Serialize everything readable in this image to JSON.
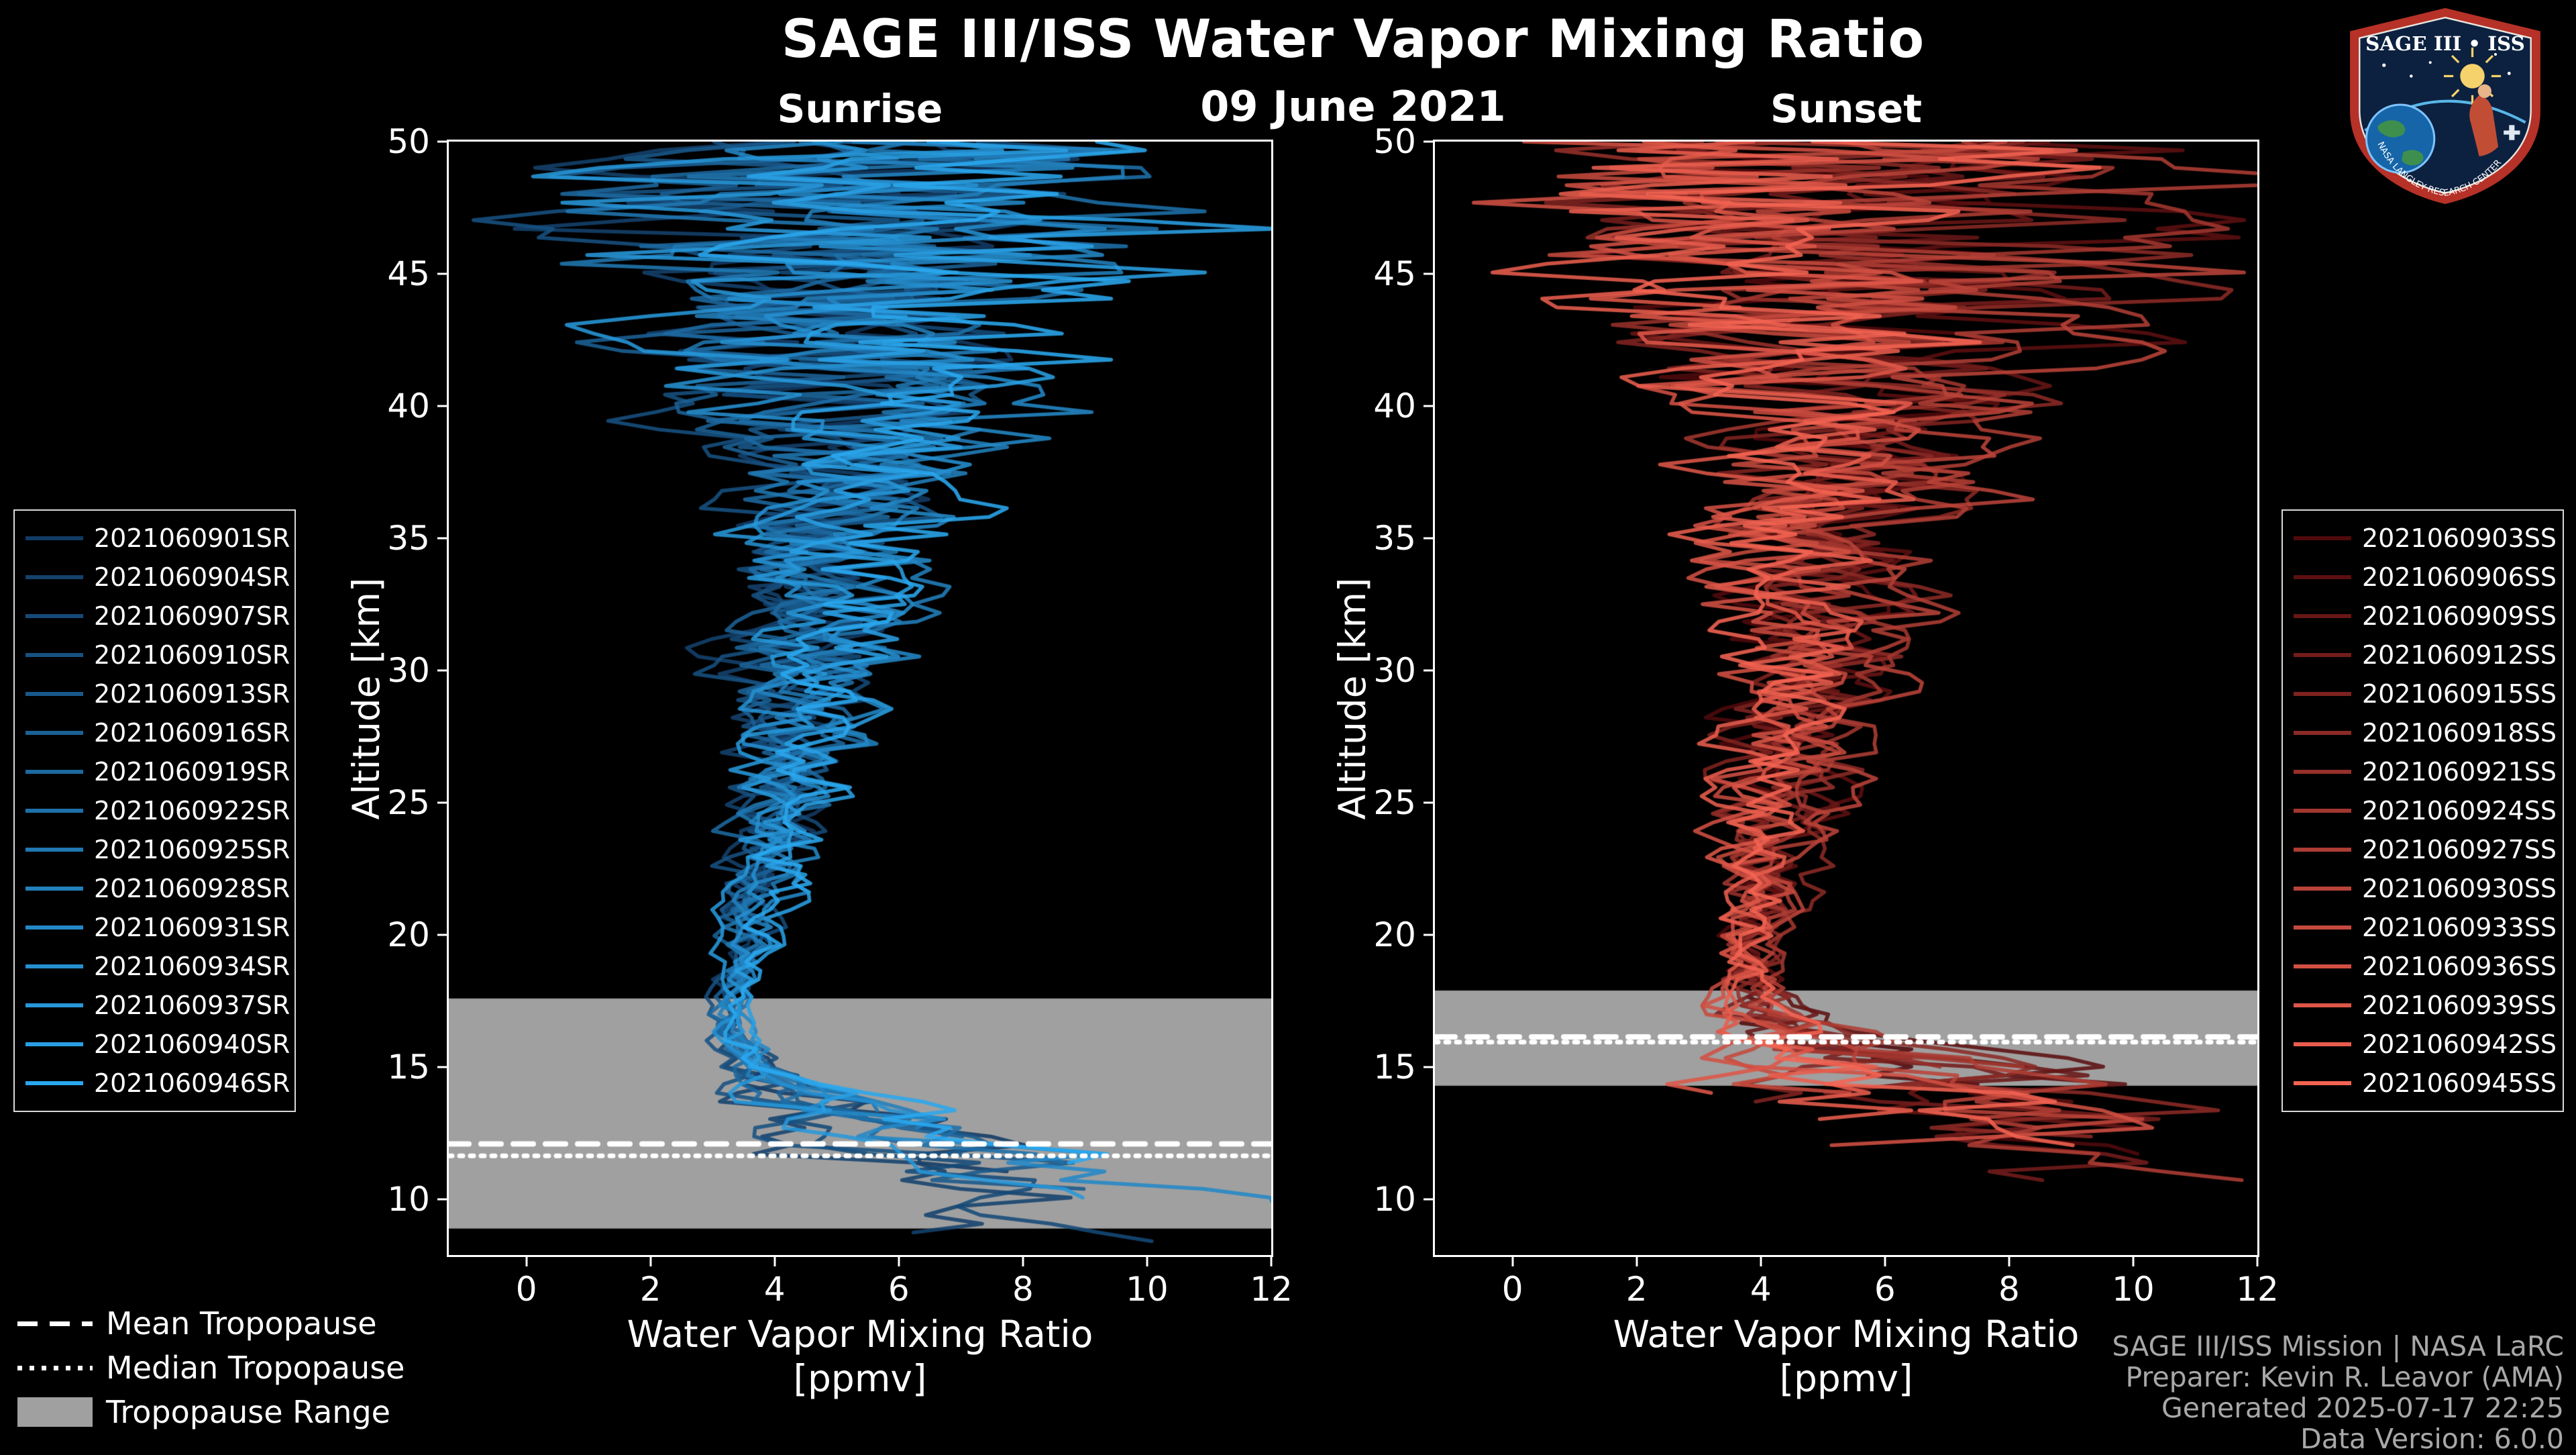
{
  "header": {
    "title": "SAGE III/ISS Water Vapor Mixing Ratio",
    "date": "09 June 2021"
  },
  "logo": {
    "title": "SAGE III • ISS",
    "ring_text": "NASA LANGLEY RESEARCH CENTER"
  },
  "tropopause_legend": {
    "mean_label": "Mean Tropopause",
    "median_label": "Median Tropopause",
    "range_label": "Tropopause Range",
    "range_color": "#a0a0a0"
  },
  "credits": {
    "line1": "SAGE III/ISS Mission | NASA LaRC",
    "line2": "Preparer: Kevin R. Leavor (AMA)",
    "line3": "Generated 2025-07-17 22:25",
    "line4": "Data Version: 6.0.0"
  },
  "chart_data": [
    {
      "type": "line",
      "title": "Sunrise",
      "xlabel": "Water Vapor Mixing Ratio",
      "xlabel_units": "[ppmv]",
      "ylabel": "Altitude [km]",
      "x_ticks": [
        0,
        2,
        4,
        6,
        8,
        10,
        12
      ],
      "y_ticks": [
        10,
        15,
        20,
        25,
        30,
        35,
        40,
        45,
        50
      ],
      "x_range": [
        -1.25,
        12.0
      ],
      "y_range": [
        7.9,
        50.0
      ],
      "grid": false,
      "legend_position": "outside-left",
      "tropopause": {
        "mean_km": 12.1,
        "median_km": 11.65,
        "range_km": [
          8.9,
          17.6
        ]
      },
      "profile": {
        "alt": [
          8,
          10,
          12,
          13,
          14,
          15,
          16,
          18,
          20,
          25,
          30,
          35,
          40,
          45,
          50
        ],
        "mean": [
          9.5,
          8.5,
          7.0,
          5.5,
          4.2,
          3.6,
          3.3,
          3.3,
          3.6,
          4.2,
          4.6,
          5.0,
          5.3,
          5.5,
          5.5
        ],
        "spread": [
          2.6,
          2.6,
          2.4,
          2.0,
          1.1,
          0.55,
          0.35,
          0.3,
          0.5,
          0.9,
          1.3,
          1.8,
          2.8,
          4.4,
          5.6
        ]
      },
      "gen": {
        "step_km": 0.33,
        "cutoff_km": [
          8.1,
          13.4
        ],
        "line_width": 5.5,
        "alpha": 0.88,
        "walk_damp": 0.5,
        "walk_gain": 0.7,
        "offset_gain": 0.5
      },
      "series": [
        {
          "label": "2021060901SR",
          "color": "#123a63",
          "seed": 11
        },
        {
          "label": "2021060904SR",
          "color": "#14426d",
          "seed": 23
        },
        {
          "label": "2021060907SR",
          "color": "#154a77",
          "seed": 35
        },
        {
          "label": "2021060910SR",
          "color": "#175181",
          "seed": 47
        },
        {
          "label": "2021060913SR",
          "color": "#19598b",
          "seed": 59
        },
        {
          "label": "2021060916SR",
          "color": "#1b6195",
          "seed": 71
        },
        {
          "label": "2021060919SR",
          "color": "#1c699f",
          "seed": 83
        },
        {
          "label": "2021060922SR",
          "color": "#1e70a9",
          "seed": 95
        },
        {
          "label": "2021060925SR",
          "color": "#2078b2",
          "seed": 107
        },
        {
          "label": "2021060928SR",
          "color": "#2280bc",
          "seed": 119
        },
        {
          "label": "2021060931SR",
          "color": "#2388c6",
          "seed": 131
        },
        {
          "label": "2021060934SR",
          "color": "#258fd0",
          "seed": 143
        },
        {
          "label": "2021060937SR",
          "color": "#2797da",
          "seed": 155
        },
        {
          "label": "2021060940SR",
          "color": "#299fe4",
          "seed": 167
        },
        {
          "label": "2021060946SR",
          "color": "#2aa7ee",
          "seed": 179
        }
      ]
    },
    {
      "type": "line",
      "title": "Sunset",
      "xlabel": "Water Vapor Mixing Ratio",
      "xlabel_units": "[ppmv]",
      "ylabel": "Altitude [km]",
      "x_ticks": [
        0,
        2,
        4,
        6,
        8,
        10,
        12
      ],
      "y_ticks": [
        10,
        15,
        20,
        25,
        30,
        35,
        40,
        45,
        50
      ],
      "x_range": [
        -1.25,
        12.0
      ],
      "y_range": [
        7.9,
        50.0
      ],
      "grid": false,
      "legend_position": "outside-right",
      "tropopause": {
        "mean_km": 16.15,
        "median_km": 15.95,
        "range_km": [
          14.3,
          17.9
        ]
      },
      "profile": {
        "alt": [
          10,
          12,
          14,
          15,
          16,
          17,
          18,
          20,
          25,
          30,
          35,
          40,
          45,
          50
        ],
        "mean": [
          9.0,
          8.2,
          7.0,
          6.2,
          4.9,
          4.1,
          3.8,
          3.9,
          4.3,
          4.7,
          5.0,
          5.3,
          5.5,
          5.5
        ],
        "spread": [
          3.0,
          3.0,
          2.8,
          2.3,
          1.5,
          0.8,
          0.5,
          0.6,
          0.9,
          1.3,
          1.8,
          2.8,
          4.2,
          5.6
        ]
      },
      "gen": {
        "step_km": 0.33,
        "cutoff_km": [
          10.4,
          15.6
        ],
        "line_width": 5.5,
        "alpha": 0.88,
        "walk_damp": 0.5,
        "walk_gain": 0.75,
        "offset_gain": 0.5
      },
      "series": [
        {
          "label": "2021060903SS",
          "color": "#500a0c",
          "seed": 211
        },
        {
          "label": "2021060906SS",
          "color": "#5c1011",
          "seed": 223
        },
        {
          "label": "2021060909SS",
          "color": "#671716",
          "seed": 235
        },
        {
          "label": "2021060912SS",
          "color": "#731d1b",
          "seed": 247
        },
        {
          "label": "2021060915SS",
          "color": "#7f2320",
          "seed": 259
        },
        {
          "label": "2021060918SS",
          "color": "#8b2a25",
          "seed": 271
        },
        {
          "label": "2021060921SS",
          "color": "#96302a",
          "seed": 283
        },
        {
          "label": "2021060924SS",
          "color": "#a2372f",
          "seed": 295
        },
        {
          "label": "2021060927SS",
          "color": "#ae3d34",
          "seed": 307
        },
        {
          "label": "2021060930SS",
          "color": "#b94339",
          "seed": 319
        },
        {
          "label": "2021060933SS",
          "color": "#c54a3e",
          "seed": 331
        },
        {
          "label": "2021060936SS",
          "color": "#d15043",
          "seed": 343
        },
        {
          "label": "2021060939SS",
          "color": "#dd5648",
          "seed": 355
        },
        {
          "label": "2021060942SS",
          "color": "#e85d4d",
          "seed": 367
        },
        {
          "label": "2021060945SS",
          "color": "#f46352",
          "seed": 379
        }
      ]
    }
  ]
}
